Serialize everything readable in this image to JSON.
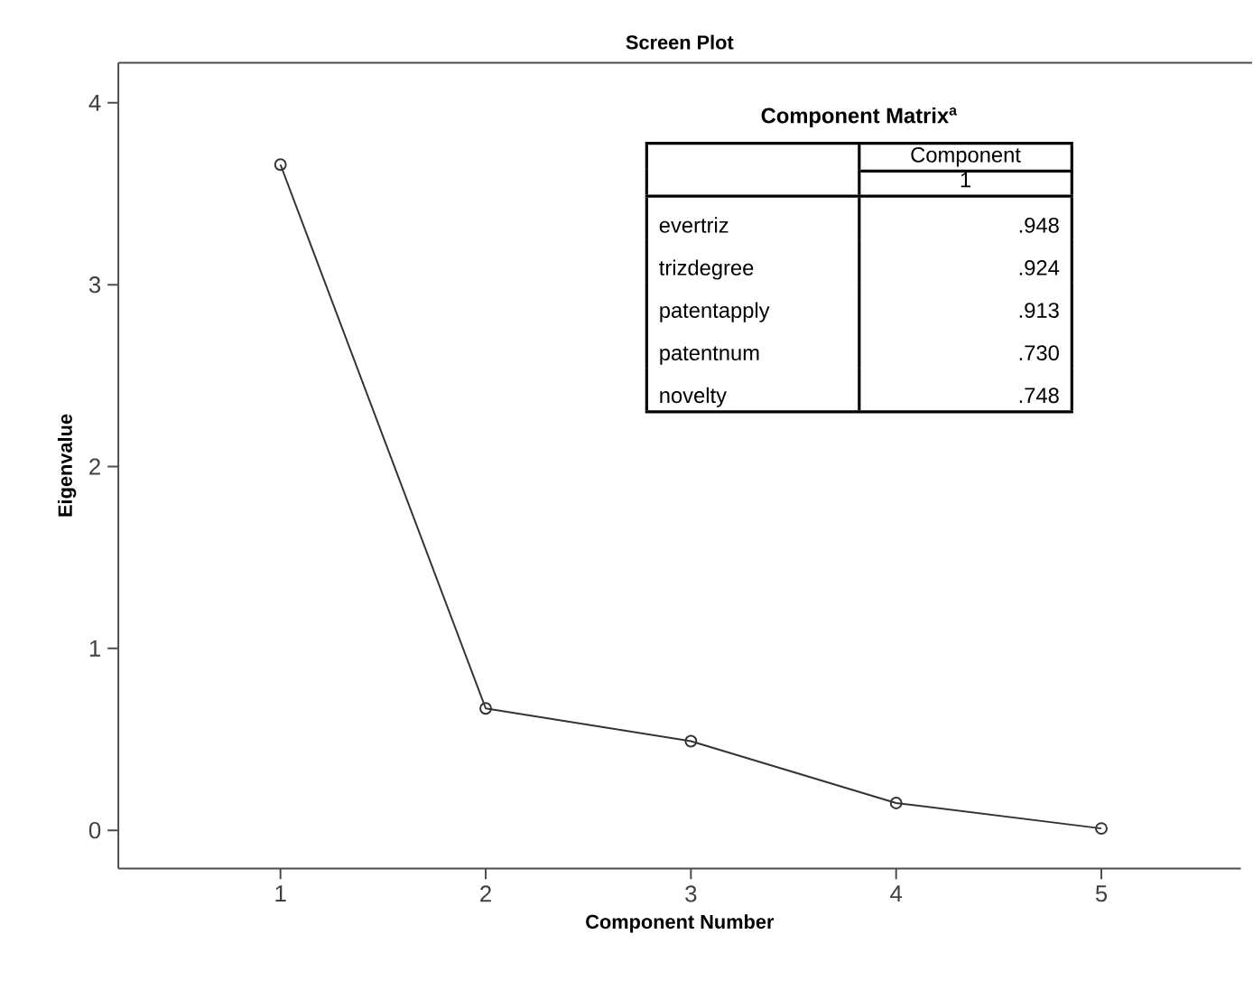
{
  "chart_data": {
    "type": "line",
    "title": "Screen Plot",
    "xlabel": "Component Number",
    "ylabel": "Eigenvalue",
    "x": [
      1,
      2,
      3,
      4,
      5
    ],
    "series": [
      {
        "color": "#333333",
        "values": [
          3.66,
          0.67,
          0.49,
          0.15,
          0.01
        ]
      }
    ],
    "xlim": [
      0.21,
      5.68
    ],
    "xticks": [
      1,
      2,
      3,
      4,
      5
    ],
    "ylim": [
      -0.21,
      4.22
    ],
    "yticks": [
      0,
      1,
      2,
      3,
      4
    ],
    "marker": "circle",
    "line_style": "solid",
    "grid": false,
    "annotations": [
      "Component Matrix$^{a}$",
      "Component",
      "1",
      "evertriz",
      ".948",
      "trizdegree",
      ".924",
      "patentapply",
      ".913",
      "patentnum",
      ".730",
      "novelty",
      ".748"
    ]
  }
}
